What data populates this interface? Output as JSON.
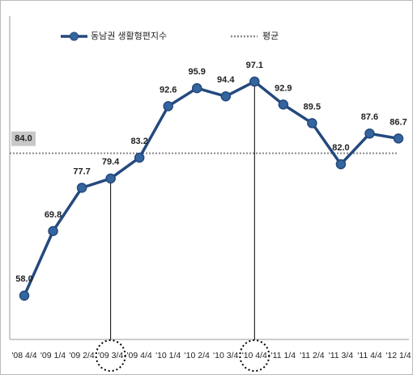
{
  "chart_data": {
    "type": "line",
    "categories": [
      "'08 4/4",
      "'09 1/4",
      "'09 2/4",
      "'09 3/4",
      "'09 4/4",
      "'10 1/4",
      "'10 2/4",
      "'10 3/4",
      "'10 4/4",
      "'11 1/4",
      "'11 2/4",
      "'11 3/4",
      "'11 4/4",
      "'12 1/4"
    ],
    "series": [
      {
        "name": "동남권 생활형편지수",
        "color": "#24497e",
        "values": [
          58.0,
          69.8,
          77.7,
          79.4,
          83.2,
          92.6,
          95.9,
          94.4,
          97.1,
          92.9,
          89.5,
          82.0,
          87.6,
          86.7
        ],
        "value_labels": [
          "58.0",
          "69.8",
          "77.7",
          "79.4",
          "83.2",
          "92.6",
          "95.9",
          "94.4",
          "97.1",
          "92.9",
          "89.5",
          "82.0",
          "87.6",
          "86.7"
        ]
      }
    ],
    "average": {
      "name": "평균",
      "value": 84,
      "label": "84.0",
      "color": "#888888"
    },
    "highlights": [
      "'09 3/4",
      "'10 4/4"
    ],
    "ylim": [
      50,
      112
    ]
  }
}
